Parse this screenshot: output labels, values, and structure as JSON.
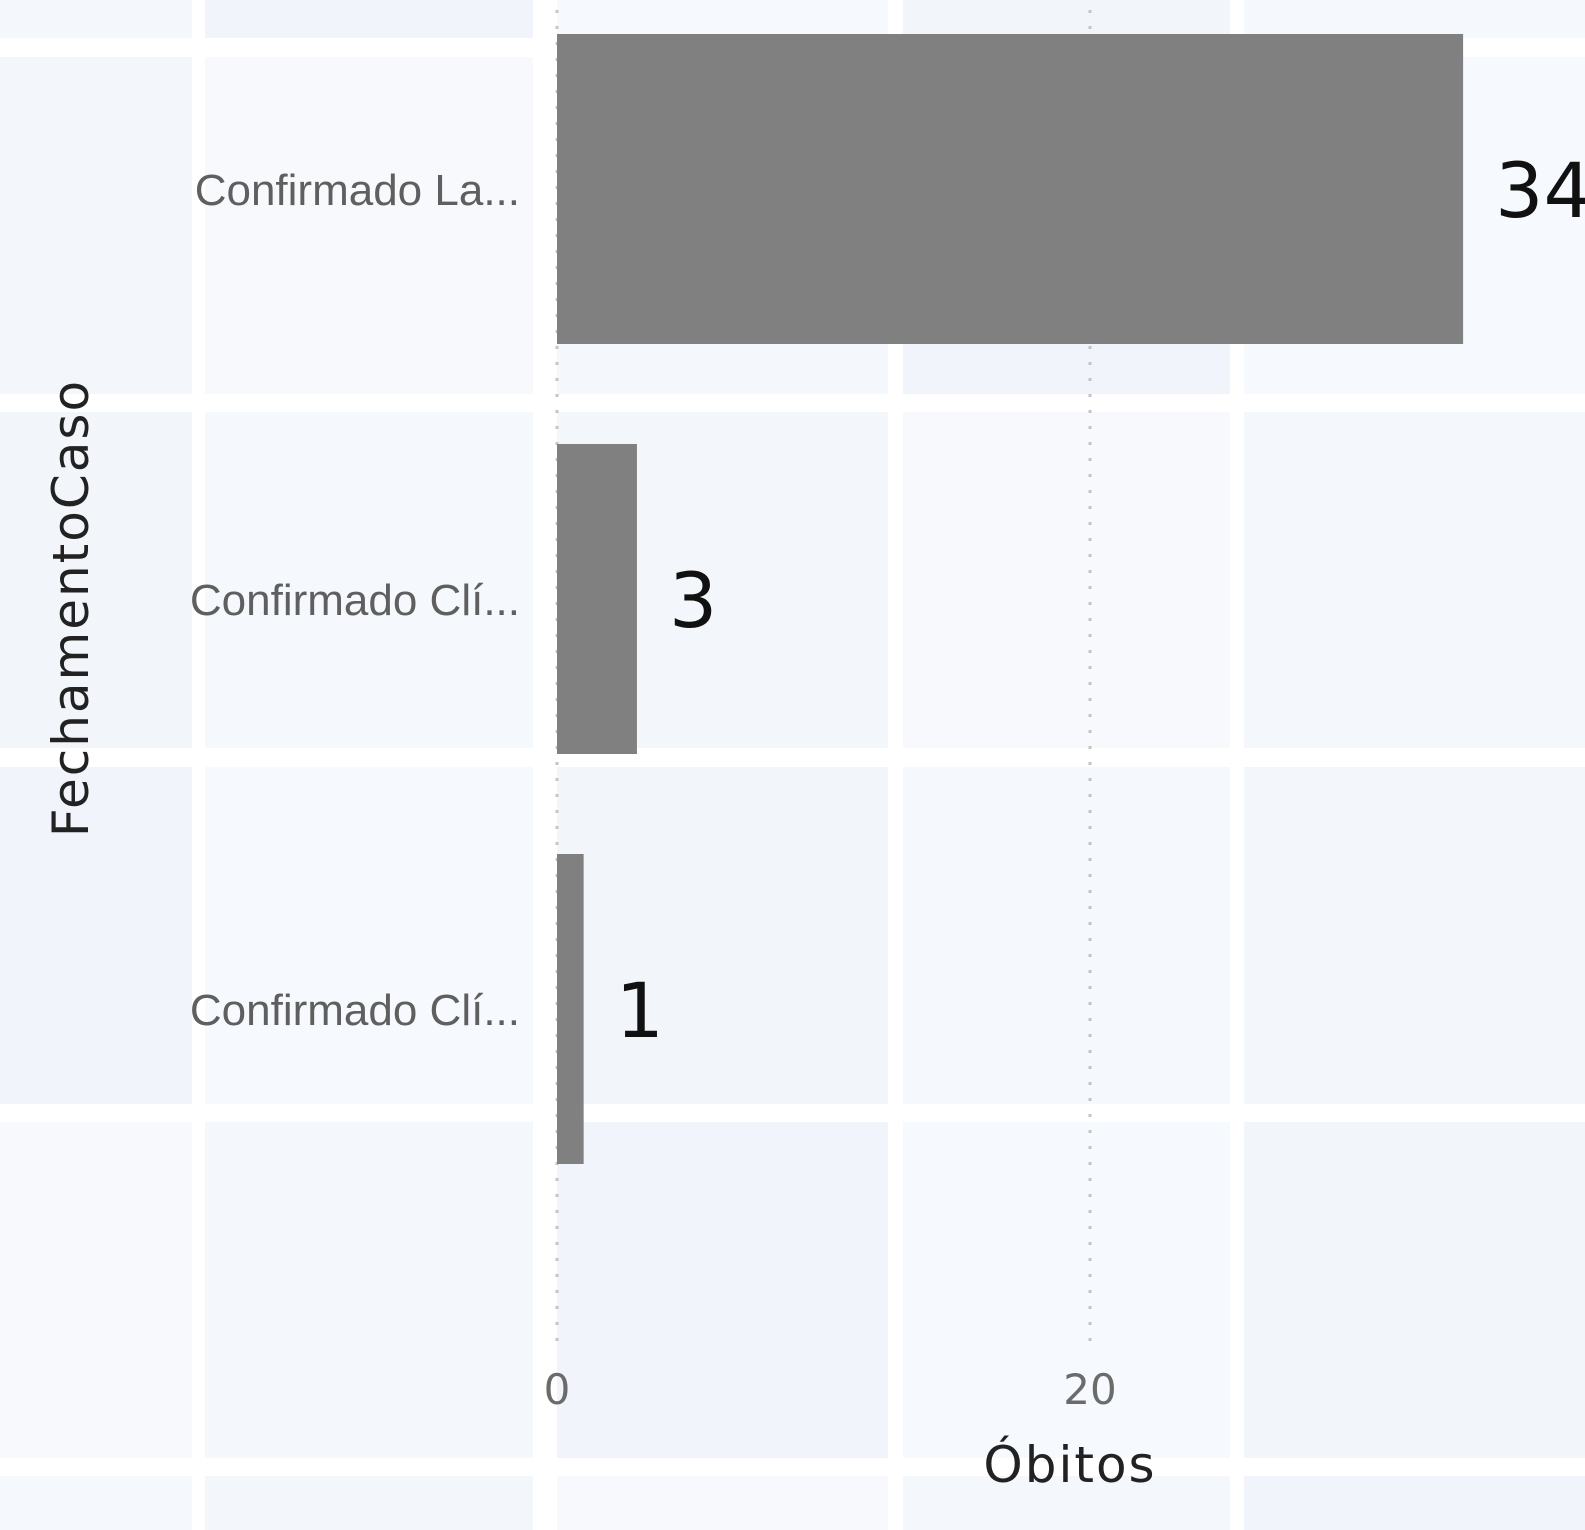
{
  "chart_data": {
    "type": "bar",
    "orientation": "horizontal",
    "categories": [
      "Confirmado La...",
      "Confirmado Clí...",
      "Confirmado Clí..."
    ],
    "values": [
      34,
      3,
      1
    ],
    "data_labels": [
      "34",
      "3",
      "1"
    ],
    "xlabel": "Óbitos",
    "ylabel": "FechamentoCaso",
    "xticks": [
      0,
      20
    ],
    "xlim": [
      0,
      34
    ],
    "grid": "vertical dotted",
    "bar_color": "#808080"
  }
}
